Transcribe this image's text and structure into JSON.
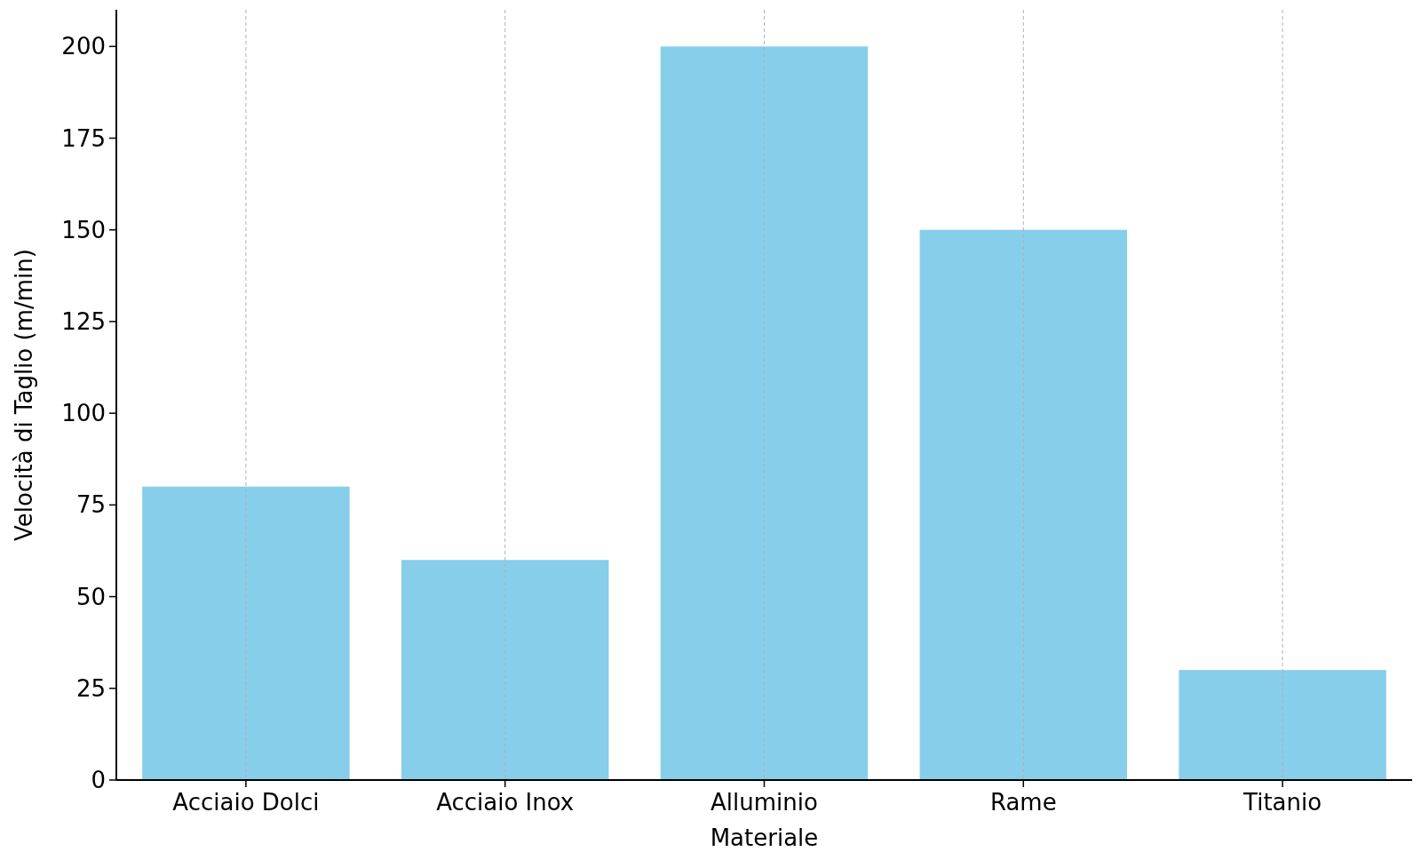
{
  "chart_data": {
    "type": "bar",
    "xlabel": "Materiale",
    "ylabel": "Velocità di Taglio (m/min)",
    "categories": [
      "Acciaio Dolci",
      "Acciaio Inox",
      "Alluminio",
      "Rame",
      "Titanio"
    ],
    "values": [
      80,
      60,
      200,
      150,
      30
    ],
    "color": "#87ceeb",
    "ylim": [
      0,
      210
    ],
    "yticks": [
      0,
      25,
      50,
      75,
      100,
      125,
      150,
      175,
      200
    ],
    "grid": "x"
  }
}
